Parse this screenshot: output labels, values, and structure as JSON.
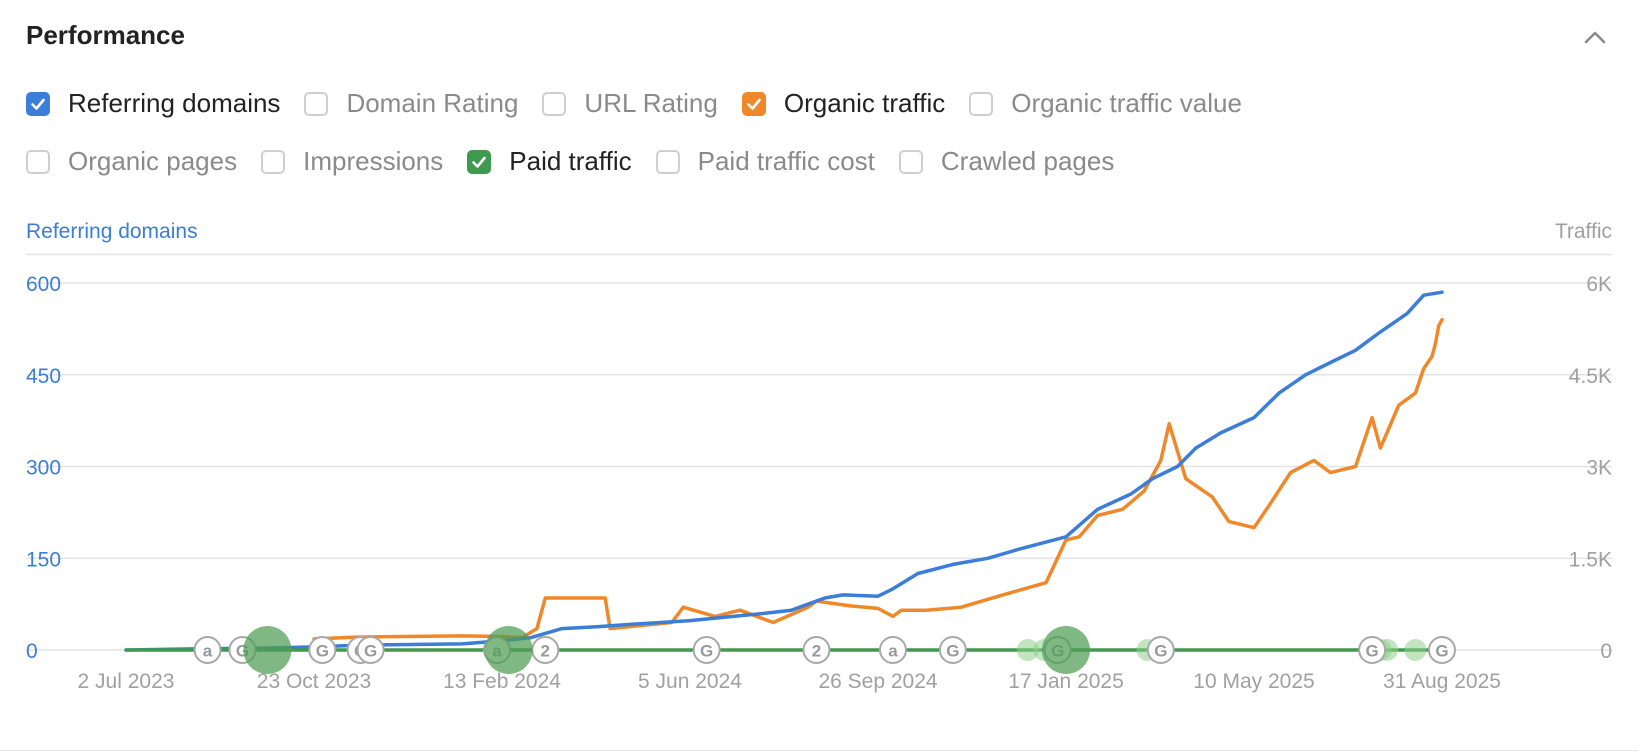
{
  "header": {
    "title": "Performance"
  },
  "metrics_row1": [
    {
      "label": "Referring domains",
      "checked": true,
      "color": "#3b7dd8"
    },
    {
      "label": "Domain Rating",
      "checked": false
    },
    {
      "label": "URL Rating",
      "checked": false
    },
    {
      "label": "Organic traffic",
      "checked": true,
      "color": "#f0882a"
    },
    {
      "label": "Organic traffic value",
      "checked": false
    }
  ],
  "metrics_row2": [
    {
      "label": "Organic pages",
      "checked": false
    },
    {
      "label": "Impressions",
      "checked": false
    },
    {
      "label": "Paid traffic",
      "checked": true,
      "color": "#3f9a4f"
    },
    {
      "label": "Paid traffic cost",
      "checked": false
    },
    {
      "label": "Crawled pages",
      "checked": false
    }
  ],
  "chart_data": {
    "type": "line",
    "y_left_label": "Referring domains",
    "y_right_label": "Traffic",
    "y_left_ticks": [
      "600",
      "450",
      "300",
      "150",
      "0"
    ],
    "y_right_ticks": [
      "6K",
      "4.5K",
      "3K",
      "1.5K",
      "0"
    ],
    "y_left_lim": [
      0,
      600
    ],
    "y_right_lim": [
      0,
      6000
    ],
    "x_lim": [
      "2023-07-02",
      "2025-08-31"
    ],
    "x_ticks": [
      "2 Jul 2023",
      "23 Oct 2023",
      "13 Feb 2024",
      "5 Jun 2024",
      "26 Sep 2024",
      "17 Jan 2025",
      "10 May 2025",
      "31 Aug 2025"
    ],
    "grid": true,
    "series": [
      {
        "name": "Referring domains",
        "axis": "left",
        "color": "#3b7dd8",
        "x": [
          "2023-07-02",
          "2023-08-15",
          "2023-09-20",
          "2023-10-23",
          "2023-11-20",
          "2023-12-20",
          "2024-01-20",
          "2024-02-13",
          "2024-03-01",
          "2024-03-20",
          "2024-04-10",
          "2024-05-01",
          "2024-06-05",
          "2024-07-01",
          "2024-07-20",
          "2024-08-05",
          "2024-08-25",
          "2024-09-05",
          "2024-09-26",
          "2024-10-05",
          "2024-10-20",
          "2024-11-10",
          "2024-12-01",
          "2024-12-20",
          "2025-01-17",
          "2025-02-05",
          "2025-02-25",
          "2025-03-10",
          "2025-03-25",
          "2025-04-05",
          "2025-04-20",
          "2025-05-10",
          "2025-05-25",
          "2025-06-10",
          "2025-06-25",
          "2025-07-10",
          "2025-07-25",
          "2025-08-10",
          "2025-08-20",
          "2025-08-31"
        ],
        "values": [
          0,
          2,
          3,
          5,
          8,
          9,
          10,
          15,
          20,
          35,
          38,
          42,
          48,
          55,
          60,
          65,
          85,
          90,
          88,
          100,
          125,
          140,
          150,
          165,
          185,
          230,
          255,
          280,
          300,
          330,
          355,
          380,
          420,
          450,
          470,
          490,
          520,
          550,
          580,
          585
        ]
      },
      {
        "name": "Organic traffic",
        "axis": "right",
        "color": "#f0882a",
        "x": [
          "2023-10-23",
          "2023-11-15",
          "2023-12-15",
          "2024-01-20",
          "2024-02-13",
          "2024-02-25",
          "2024-03-05",
          "2024-03-10",
          "2024-04-15",
          "2024-04-18",
          "2024-05-25",
          "2024-06-01",
          "2024-06-20",
          "2024-07-05",
          "2024-07-25",
          "2024-08-15",
          "2024-08-20",
          "2024-09-10",
          "2024-09-26",
          "2024-10-05",
          "2024-10-10",
          "2024-10-25",
          "2024-11-15",
          "2024-12-10",
          "2025-01-05",
          "2025-01-17",
          "2025-01-25",
          "2025-02-05",
          "2025-02-20",
          "2025-03-05",
          "2025-03-15",
          "2025-03-20",
          "2025-03-30",
          "2025-04-15",
          "2025-04-25",
          "2025-05-10",
          "2025-05-20",
          "2025-06-01",
          "2025-06-15",
          "2025-06-25",
          "2025-07-10",
          "2025-07-20",
          "2025-07-25",
          "2025-08-05",
          "2025-08-15",
          "2025-08-20",
          "2025-08-25",
          "2025-08-27",
          "2025-08-29",
          "2025-08-31"
        ],
        "values": [
          180,
          210,
          220,
          230,
          220,
          200,
          350,
          850,
          850,
          350,
          450,
          700,
          550,
          650,
          450,
          700,
          800,
          720,
          680,
          550,
          650,
          650,
          700,
          900,
          1100,
          1800,
          1850,
          2200,
          2300,
          2600,
          3100,
          3700,
          2800,
          2500,
          2100,
          2000,
          2400,
          2900,
          3100,
          2900,
          3000,
          3800,
          3300,
          4000,
          4200,
          4600,
          4800,
          5000,
          5300,
          5400
        ]
      },
      {
        "name": "Paid traffic",
        "axis": "right",
        "color": "#3f9a4f",
        "x": [
          "2023-07-02",
          "2025-08-31"
        ],
        "values": [
          0,
          0
        ]
      }
    ],
    "annotations": [
      {
        "date": "2023-08-20",
        "label": "a"
      },
      {
        "date": "2023-09-10",
        "label": "G"
      },
      {
        "date": "2023-10-28",
        "label": "G"
      },
      {
        "date": "2023-11-20",
        "label": "G"
      },
      {
        "date": "2023-11-26",
        "label": "G"
      },
      {
        "date": "2024-02-10",
        "label": "a"
      },
      {
        "date": "2024-03-10",
        "label": "2"
      },
      {
        "date": "2024-06-15",
        "label": "G"
      },
      {
        "date": "2024-08-20",
        "label": "2"
      },
      {
        "date": "2024-10-05",
        "label": "a"
      },
      {
        "date": "2024-11-10",
        "label": "G"
      },
      {
        "date": "2025-01-12",
        "label": "G"
      },
      {
        "date": "2025-03-15",
        "label": "G"
      },
      {
        "date": "2025-07-20",
        "label": "G"
      },
      {
        "date": "2025-08-31",
        "label": "G"
      }
    ],
    "paid_events_large": [
      "2023-09-25",
      "2024-02-17",
      "2025-01-17"
    ],
    "paid_events_small": [
      "2024-12-25",
      "2025-01-04",
      "2025-03-07",
      "2025-07-25",
      "2025-07-29",
      "2025-08-15"
    ]
  }
}
